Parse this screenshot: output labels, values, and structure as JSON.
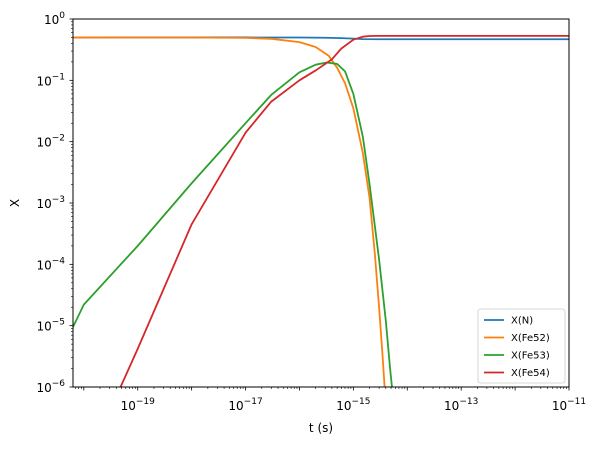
{
  "chart_data": {
    "type": "line",
    "title": "",
    "xlabel": "t (s)",
    "ylabel": "X",
    "xscale": "log",
    "yscale": "log",
    "xlim": [
      6.3e-21,
      1e-11
    ],
    "ylim": [
      1e-06,
      1
    ],
    "grid": false,
    "legend_position": "lower-right",
    "x_ticks": [
      {
        "value": 1e-19,
        "base": "10",
        "exp": "−19"
      },
      {
        "value": 1e-17,
        "base": "10",
        "exp": "−17"
      },
      {
        "value": 1e-15,
        "base": "10",
        "exp": "−15"
      },
      {
        "value": 1e-13,
        "base": "10",
        "exp": "−13"
      },
      {
        "value": 1e-11,
        "base": "10",
        "exp": "−11"
      }
    ],
    "y_ticks": [
      {
        "value": 1e-06,
        "base": "10",
        "exp": "−6"
      },
      {
        "value": 1e-05,
        "base": "10",
        "exp": "−5"
      },
      {
        "value": 0.0001,
        "base": "10",
        "exp": "−4"
      },
      {
        "value": 0.001,
        "base": "10",
        "exp": "−3"
      },
      {
        "value": 0.01,
        "base": "10",
        "exp": "−2"
      },
      {
        "value": 0.1,
        "base": "10",
        "exp": "−1"
      },
      {
        "value": 1,
        "base": "10",
        "exp": "0"
      }
    ],
    "series": [
      {
        "name": "X(N)",
        "color": "#1f77b4",
        "points": [
          [
            6.3e-21,
            0.5
          ],
          [
            1e-19,
            0.5
          ],
          [
            1e-17,
            0.5
          ],
          [
            1e-16,
            0.499
          ],
          [
            3e-16,
            0.495
          ],
          [
            6e-16,
            0.488
          ],
          [
            1e-15,
            0.478
          ],
          [
            1.5e-15,
            0.47
          ],
          [
            3e-15,
            0.468
          ],
          [
            1e-14,
            0.468
          ],
          [
            1e-12,
            0.468
          ],
          [
            1e-11,
            0.468
          ]
        ]
      },
      {
        "name": "X(Fe52)",
        "color": "#ff7f0e",
        "points": [
          [
            6.3e-21,
            0.5
          ],
          [
            1e-18,
            0.499
          ],
          [
            1e-17,
            0.493
          ],
          [
            3e-17,
            0.475
          ],
          [
            1e-16,
            0.42
          ],
          [
            2e-16,
            0.35
          ],
          [
            3.5e-16,
            0.25
          ],
          [
            5e-16,
            0.16
          ],
          [
            7e-16,
            0.09
          ],
          [
            1e-15,
            0.035
          ],
          [
            1.5e-15,
            0.0065
          ],
          [
            2e-15,
            0.0012
          ],
          [
            2.5e-15,
            0.00015
          ],
          [
            3e-15,
            2e-05
          ],
          [
            3.5e-15,
            3e-06
          ],
          [
            3.8e-15,
            1e-06
          ]
        ]
      },
      {
        "name": "X(Fe53)",
        "color": "#2ca02c",
        "points": [
          [
            6.3e-21,
            9.5e-06
          ],
          [
            1e-20,
            2.2e-05
          ],
          [
            1e-19,
            0.0002
          ],
          [
            1e-18,
            0.0021
          ],
          [
            1e-17,
            0.02
          ],
          [
            3e-17,
            0.058
          ],
          [
            1e-16,
            0.135
          ],
          [
            2e-16,
            0.18
          ],
          [
            3.2e-16,
            0.195
          ],
          [
            5e-16,
            0.185
          ],
          [
            7e-16,
            0.14
          ],
          [
            1e-15,
            0.06
          ],
          [
            1.5e-15,
            0.012
          ],
          [
            2e-15,
            0.002
          ],
          [
            3e-15,
            0.00012
          ],
          [
            4e-15,
            1.2e-05
          ],
          [
            4.8e-15,
            2e-06
          ],
          [
            5.2e-15,
            1e-06
          ]
        ]
      },
      {
        "name": "X(Fe54)",
        "color": "#d62728",
        "points": [
          [
            4.8e-20,
            1e-06
          ],
          [
            1e-19,
            4.2e-06
          ],
          [
            1e-18,
            0.00045
          ],
          [
            1e-17,
            0.014
          ],
          [
            3e-17,
            0.045
          ],
          [
            1e-16,
            0.1
          ],
          [
            2e-16,
            0.145
          ],
          [
            4e-16,
            0.22
          ],
          [
            6e-16,
            0.33
          ],
          [
            1e-15,
            0.46
          ],
          [
            1.5e-15,
            0.515
          ],
          [
            2e-15,
            0.528
          ],
          [
            3e-15,
            0.53
          ],
          [
            1e-14,
            0.53
          ],
          [
            1e-12,
            0.53
          ],
          [
            1e-11,
            0.53
          ]
        ]
      }
    ]
  }
}
